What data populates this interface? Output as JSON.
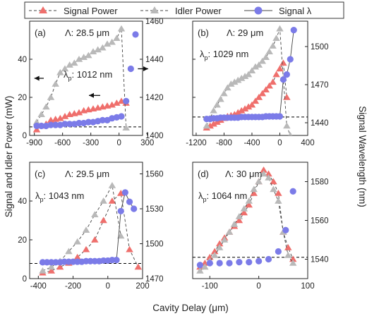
{
  "legend": {
    "signal_power": "Signal Power",
    "idler_power": "Idler Power",
    "signal_lambda": "Signal λ"
  },
  "axes": {
    "xlabel": "Cavity Delay (μm)",
    "ylabel_left": "Signal and Idler Power (mW)",
    "ylabel_right": "Signal Wavelength (nm)"
  },
  "colors": {
    "signal_power": "#ef6f6c",
    "idler_power": "#b9b9b9",
    "signal_lambda": "#7b7be8",
    "line": "#444444",
    "ref_line": "#000000"
  },
  "chart_data": [
    {
      "type": "scatter",
      "panel_label": "(a)",
      "period_label": "Λ: 28.5 μm",
      "pump_label_main": "λ",
      "pump_label_sub": "p",
      "pump_label_rest": ": 1012 nm",
      "xlim": [
        -950,
        250
      ],
      "xticks": [
        -900,
        -600,
        -300,
        0,
        300
      ],
      "ylim_left": [
        0,
        60
      ],
      "yticks_left": [
        0,
        20,
        40
      ],
      "ylim_right": [
        1400,
        1460
      ],
      "yticks_right": [
        1400,
        1420,
        1440,
        1460
      ],
      "show_left_ticklabels": true,
      "show_right_ticklabels": true,
      "series": [
        {
          "name": "Signal Power",
          "axis": "left",
          "marker": "triangle",
          "x": [
            -875,
            -825,
            -775,
            -725,
            -675,
            -625,
            -575,
            -525,
            -475,
            -425,
            -375,
            -325,
            -275,
            -225,
            -175,
            -125,
            -75,
            -25,
            25,
            75
          ],
          "y": [
            3,
            5,
            6,
            8,
            8.5,
            9,
            10,
            11,
            11.5,
            12,
            13,
            13.5,
            14,
            14.5,
            15,
            15.5,
            16,
            17,
            18,
            17
          ]
        },
        {
          "name": "Idler Power",
          "axis": "left",
          "marker": "triangle",
          "x": [
            -875,
            -825,
            -775,
            -725,
            -675,
            -625,
            -575,
            -525,
            -475,
            -425,
            -375,
            -325,
            -275,
            -225,
            -175,
            -125,
            -75,
            -25,
            25,
            75
          ],
          "y": [
            7,
            11,
            15,
            20,
            27,
            33,
            35,
            37,
            38,
            40,
            41,
            42,
            44,
            45,
            46,
            48,
            49,
            51,
            56,
            4
          ]
        },
        {
          "name": "Signal λ",
          "axis": "right",
          "marker": "circle",
          "connect": false,
          "x": [
            -875,
            -825,
            -775,
            -725,
            -675,
            -625,
            -575,
            -525,
            -475,
            -425,
            -375,
            -325,
            -275,
            -225,
            -175,
            -125,
            -75,
            -25,
            25,
            75,
            125,
            175
          ],
          "y": [
            1405,
            1405,
            1405,
            1405.5,
            1405.5,
            1405.5,
            1406,
            1406,
            1406,
            1406.5,
            1406.5,
            1407,
            1407,
            1407.5,
            1408,
            1408,
            1409,
            1409.5,
            1410,
            1418,
            1435,
            1453
          ]
        }
      ],
      "ref_line_y": 1404.5,
      "arrows": [
        {
          "x_from": -800,
          "x_to": -900,
          "y": 30
        },
        {
          "x_from": -200,
          "x_to": -320,
          "y": 21
        },
        {
          "x_from": 200,
          "x_to": 310,
          "y": 35
        }
      ]
    },
    {
      "type": "scatter",
      "panel_label": "(b)",
      "period_label": "Λ: 29 μm",
      "pump_label_main": "λ",
      "pump_label_sub": "p",
      "pump_label_rest": ": 1029 nm",
      "xlim": [
        -1250,
        400
      ],
      "xticks": [
        -1200,
        -800,
        -400,
        0,
        400
      ],
      "ylim_left": [
        0,
        60
      ],
      "yticks_left": [
        0,
        20,
        40
      ],
      "ylim_right": [
        1430,
        1520
      ],
      "yticks_right": [
        1440,
        1470,
        1500
      ],
      "show_left_ticklabels": false,
      "show_right_ticklabels": true,
      "series": [
        {
          "name": "Signal Power",
          "axis": "left",
          "marker": "triangle",
          "x": [
            -1050,
            -1000,
            -950,
            -900,
            -850,
            -800,
            -750,
            -700,
            -650,
            -600,
            -550,
            -500,
            -450,
            -400,
            -350,
            -300,
            -250,
            -200,
            -150,
            -100,
            -50,
            0,
            50,
            100
          ],
          "y": [
            4,
            5,
            6,
            7,
            8,
            9,
            10,
            10.5,
            11,
            12,
            13,
            14,
            15,
            16,
            18,
            20,
            22,
            24,
            26,
            28,
            32,
            35,
            38,
            20
          ]
        },
        {
          "name": "Idler Power",
          "axis": "left",
          "marker": "triangle",
          "x": [
            -1050,
            -1000,
            -950,
            -900,
            -850,
            -800,
            -750,
            -700,
            -650,
            -600,
            -550,
            -500,
            -450,
            -400,
            -350,
            -300,
            -250,
            -200,
            -150,
            -100,
            -50,
            0,
            50,
            100,
            150
          ],
          "y": [
            5,
            9,
            13,
            16,
            19,
            22,
            25,
            27,
            28,
            29,
            30,
            31,
            32,
            34,
            36,
            37,
            39,
            41,
            44,
            47,
            51,
            56,
            30,
            5,
            0
          ]
        },
        {
          "name": "Signal λ",
          "axis": "right",
          "marker": "circle",
          "connect": true,
          "x": [
            -1050,
            -1000,
            -950,
            -900,
            -850,
            -800,
            -750,
            -700,
            -650,
            -600,
            -550,
            -500,
            -450,
            -400,
            -350,
            -300,
            -250,
            -200,
            -150,
            -100,
            -50,
            0,
            50,
            100,
            150,
            200
          ],
          "y": [
            1443,
            1443,
            1443.5,
            1443.5,
            1444,
            1444,
            1444,
            1444,
            1444,
            1444,
            1444.5,
            1444.5,
            1444.5,
            1444.5,
            1444.5,
            1444.5,
            1444.5,
            1445,
            1445,
            1445,
            1445,
            1445,
            1474,
            1478,
            1490,
            1513
          ]
        }
      ],
      "ref_line_y": 1444.5,
      "arrows": []
    },
    {
      "type": "scatter",
      "panel_label": "(c)",
      "period_label": "Λ: 29.5 μm",
      "pump_label_main": "λ",
      "pump_label_sub": "p",
      "pump_label_rest": ": 1043 nm",
      "xlim": [
        -450,
        200
      ],
      "xticks": [
        -400,
        -200,
        0,
        200
      ],
      "ylim_left": [
        0,
        60
      ],
      "yticks_left": [
        0,
        20,
        40
      ],
      "ylim_right": [
        1470,
        1570
      ],
      "yticks_right": [
        1470,
        1500,
        1530,
        1560
      ],
      "show_left_ticklabels": true,
      "show_right_ticklabels": true,
      "series": [
        {
          "name": "Signal Power",
          "axis": "left",
          "marker": "triangle",
          "x": [
            -375,
            -325,
            -275,
            -225,
            -175,
            -125,
            -75,
            -25,
            25,
            75,
            125,
            175
          ],
          "y": [
            3,
            4,
            6,
            8,
            11,
            15,
            20,
            30,
            40,
            44,
            15,
            6
          ]
        },
        {
          "name": "Idler Power",
          "axis": "left",
          "marker": "triangle",
          "x": [
            -375,
            -325,
            -275,
            -225,
            -175,
            -125,
            -75,
            -25,
            25,
            75
          ],
          "y": [
            4,
            6,
            9,
            14,
            19,
            25,
            33,
            40,
            48,
            22
          ]
        },
        {
          "name": "Signal λ",
          "axis": "right",
          "marker": "circle",
          "connect": true,
          "x": [
            -375,
            -350,
            -325,
            -300,
            -275,
            -250,
            -225,
            -200,
            -175,
            -150,
            -125,
            -100,
            -75,
            -50,
            -25,
            0,
            25,
            50,
            75,
            100,
            125,
            150
          ],
          "y": [
            1484,
            1484,
            1484,
            1484,
            1484,
            1484.5,
            1484.5,
            1484.5,
            1484.5,
            1484.5,
            1485,
            1485,
            1485,
            1485,
            1485.5,
            1485.5,
            1486,
            1486,
            1528,
            1544,
            1536,
            1530
          ]
        }
      ],
      "ref_line_y": 1483,
      "arrows": []
    },
    {
      "type": "scatter",
      "panel_label": "(d)",
      "period_label": "Λ: 30 μm",
      "pump_label_main": "λ",
      "pump_label_sub": "p",
      "pump_label_rest": ": 1064 nm",
      "xlim": [
        -135,
        100
      ],
      "xticks": [
        -100,
        0,
        100
      ],
      "ylim_left": [
        0,
        30
      ],
      "yticks_left": [],
      "ylim_right": [
        1530,
        1590
      ],
      "yticks_right": [
        1540,
        1560,
        1580
      ],
      "show_left_ticklabels": false,
      "show_right_ticklabels": true,
      "series": [
        {
          "name": "Signal Power",
          "axis": "left",
          "marker": "triangle",
          "x": [
            -120,
            -110,
            -100,
            -90,
            -80,
            -70,
            -60,
            -50,
            -40,
            -30,
            -20,
            -10,
            0,
            10,
            20,
            30,
            40,
            50,
            60,
            70
          ],
          "y": [
            3,
            4,
            5.5,
            7,
            9,
            10.5,
            12,
            13.5,
            15,
            17,
            19,
            22,
            25,
            28,
            27,
            25,
            22,
            12,
            8,
            5
          ]
        },
        {
          "name": "Idler Power",
          "axis": "left",
          "marker": "triangle",
          "x": [
            -120,
            -110,
            -100,
            -90,
            -80,
            -70,
            -60,
            -50,
            -40,
            -30,
            -20,
            -10,
            0,
            10,
            20,
            30,
            40,
            50,
            60,
            70
          ],
          "y": [
            2,
            3,
            4.5,
            6,
            8,
            10,
            12,
            14,
            16,
            18,
            20,
            23,
            25,
            27,
            26,
            23,
            20,
            12,
            6,
            4
          ]
        },
        {
          "name": "Signal λ",
          "axis": "right",
          "marker": "circle",
          "connect": false,
          "x": [
            -120,
            -100,
            -80,
            -60,
            -40,
            -20,
            0,
            20,
            40,
            55,
            70
          ],
          "y": [
            1537,
            1538,
            1538,
            1538,
            1538.5,
            1538.5,
            1539,
            1540,
            1544,
            1555,
            1575
          ]
        }
      ],
      "ref_line_y": 1541,
      "arrows": []
    }
  ]
}
